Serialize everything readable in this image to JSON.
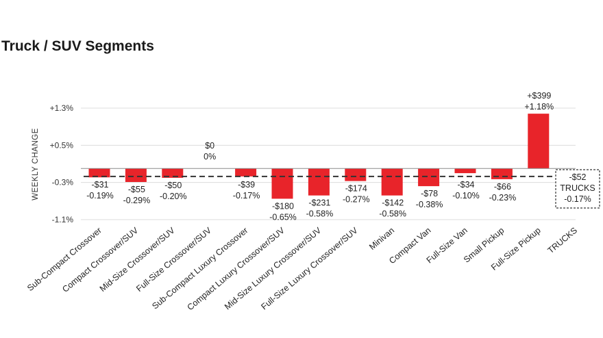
{
  "chart_data": {
    "type": "bar",
    "title": "Truck / SUV Segments",
    "ylabel": "WEEKLY CHANGE",
    "xlabel": "",
    "ylim": [
      -1.1,
      1.3
    ],
    "yticks": [
      "+1.3%",
      "+0.5%",
      "-0.3%",
      "-1.1%"
    ],
    "ytick_values": [
      1.3,
      0.5,
      -0.3,
      -1.1
    ],
    "grid": true,
    "bar_color": "#e8242a",
    "categories": [
      "Sub-Compact Crossover",
      "Compact Crossover/SUV",
      "Mid-Size Crossover/SUV",
      "Full-Size Crossover/SUV",
      "Sub-Compact Luxury Crossover",
      "Compact Luxury Crossover/SUV",
      "Mid-Size Luxury Crossover/SUV",
      "Full-Size Luxury Crossover/SUV",
      "Minivan",
      "Compact Van",
      "Full-Size Van",
      "Small Pickup",
      "Full-Size Pickup",
      "TRUCKS"
    ],
    "values": [
      -0.19,
      -0.29,
      -0.2,
      0,
      -0.17,
      -0.65,
      -0.58,
      -0.27,
      -0.58,
      -0.38,
      -0.1,
      -0.23,
      1.18,
      -0.17
    ],
    "dollar_labels": [
      "-$31",
      "-$55",
      "-$50",
      "$0",
      "-$39",
      "-$180",
      "-$231",
      "-$174",
      "-$142",
      "-$78",
      "-$34",
      "-$66",
      "+$399",
      "-$52"
    ],
    "percent_labels": [
      "-0.19%",
      "-0.29%",
      "-0.20%",
      "0%",
      "-0.17%",
      "-0.65%",
      "-0.58%",
      "-0.27%",
      "-0.58%",
      "-0.38%",
      "-0.10%",
      "-0.23%",
      "+1.18%",
      "-0.17%"
    ],
    "reference_line": {
      "label": "TRUCKS",
      "value": -0.17,
      "style": "dashed"
    },
    "summary_box": {
      "dollar": "-$52",
      "label": "TRUCKS",
      "percent": "-0.17%"
    }
  }
}
